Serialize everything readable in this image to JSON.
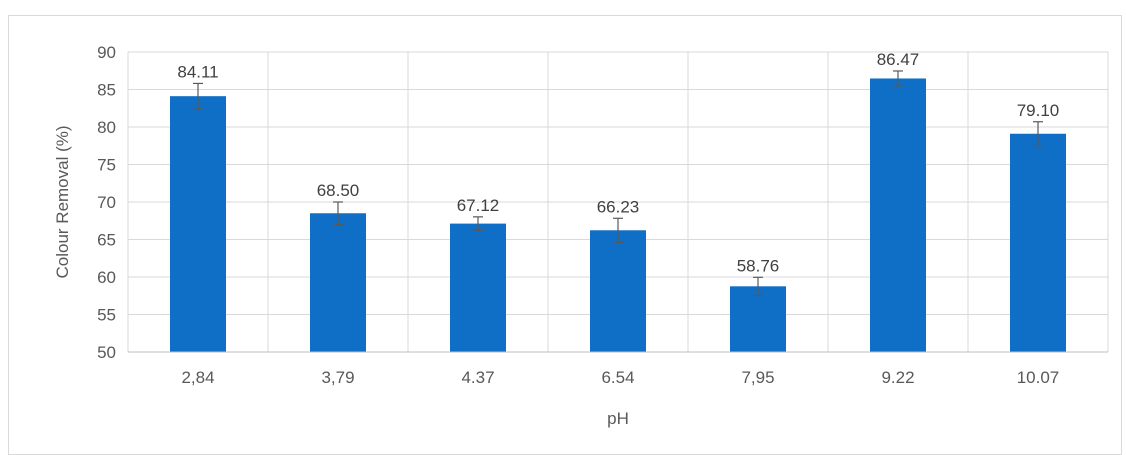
{
  "chart_data": {
    "type": "bar",
    "title": "",
    "xlabel": "pH",
    "ylabel": "Colour Removal (%)",
    "categories": [
      "2,84",
      "3,79",
      "4.37",
      "6.54",
      "7,95",
      "9.22",
      "10.07"
    ],
    "values": [
      84.11,
      68.5,
      67.12,
      66.23,
      58.76,
      86.47,
      79.1
    ],
    "data_labels": [
      "84.11",
      "68.50",
      "67.12",
      "66.23",
      "58.76",
      "86.47",
      "79.10"
    ],
    "error": [
      1.7,
      1.5,
      0.9,
      1.6,
      1.2,
      1.0,
      1.6
    ],
    "ylim": [
      50,
      90
    ],
    "yticks": [
      50,
      55,
      60,
      65,
      70,
      75,
      80,
      85,
      90
    ],
    "grid": true,
    "legend": "none",
    "bar_color": "#0f6fc6",
    "error_bar_color": "#595959",
    "grid_color": "#d9d9d9"
  }
}
